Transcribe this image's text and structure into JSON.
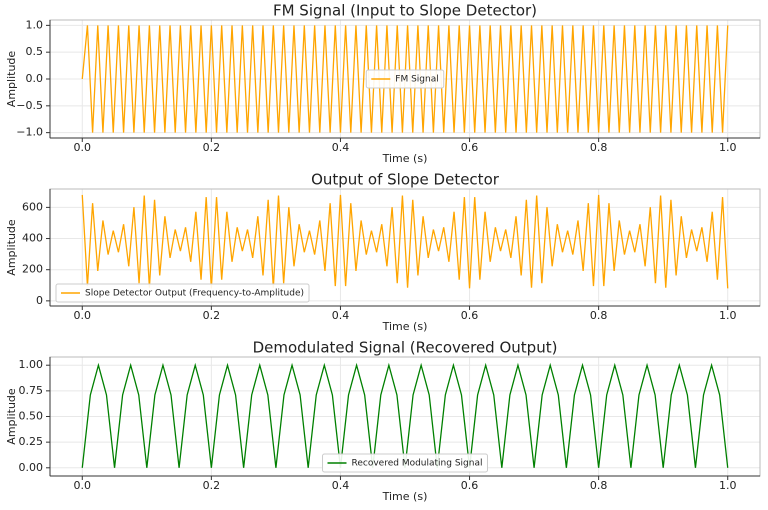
{
  "chart_data": [
    {
      "type": "line",
      "title": "FM Signal (Input to Slope Detector)",
      "x_label": "Time (s)",
      "y_label": "Amplitude",
      "x": [
        0,
        0.008,
        0.016,
        0.024,
        0.032,
        0.04,
        0.048,
        0.056,
        0.064,
        0.072,
        0.08,
        0.088,
        0.096,
        0.104,
        0.112,
        0.12,
        0.128,
        0.136,
        0.144,
        0.152,
        0.16,
        0.168,
        0.176,
        0.184,
        0.192,
        0.2,
        0.208,
        0.216,
        0.224,
        0.232,
        0.24,
        0.248,
        0.256,
        0.264,
        0.272,
        0.28,
        0.288,
        0.296,
        0.304,
        0.312,
        0.32,
        0.328,
        0.336,
        0.344,
        0.352,
        0.36,
        0.368,
        0.376,
        0.384,
        0.392,
        0.4,
        0.408,
        0.416,
        0.424,
        0.432,
        0.44,
        0.448,
        0.456,
        0.464,
        0.472,
        0.48,
        0.488,
        0.496,
        0.504,
        0.512,
        0.52,
        0.528,
        0.536,
        0.544,
        0.552,
        0.56,
        0.568,
        0.576,
        0.584,
        0.592,
        0.6,
        0.608,
        0.616,
        0.624,
        0.632,
        0.64,
        0.648,
        0.656,
        0.664,
        0.672,
        0.68,
        0.688,
        0.696,
        0.704,
        0.712,
        0.72,
        0.728,
        0.736,
        0.744,
        0.752,
        0.76,
        0.768,
        0.776,
        0.784,
        0.792,
        0.8,
        0.808,
        0.816,
        0.824,
        0.832,
        0.84,
        0.848,
        0.856,
        0.864,
        0.872,
        0.88,
        0.888,
        0.896,
        0.904,
        0.912,
        0.92,
        0.928,
        0.936,
        0.944,
        0.952,
        0.96,
        0.968,
        0.976,
        0.984,
        0.992,
        1
      ],
      "series": [
        {
          "name": "FM Signal",
          "color": "#ffa500",
          "values": [
            0,
            1,
            -1,
            1,
            -1,
            1,
            -1,
            1,
            -1,
            1,
            -1,
            1,
            -1,
            1,
            -1,
            1,
            -1,
            1,
            -1,
            1,
            -1,
            1,
            -1,
            1,
            -1,
            1,
            -1,
            1,
            -1,
            1,
            -1,
            1,
            -1,
            1,
            -1,
            1,
            -1,
            1,
            -1,
            1,
            -1,
            1,
            -1,
            1,
            -1,
            1,
            -1,
            1,
            -1,
            1,
            -1,
            1,
            -1,
            1,
            -1,
            1,
            -1,
            1,
            -1,
            1,
            -1,
            1,
            -1,
            1,
            -1,
            1,
            -1,
            1,
            -1,
            1,
            -1,
            1,
            -1,
            1,
            -1,
            1,
            -1,
            1,
            -1,
            1,
            -1,
            1,
            -1,
            1,
            -1,
            1,
            -1,
            1,
            -1,
            1,
            -1,
            1,
            -1,
            1,
            -1,
            1,
            -1,
            1,
            -1,
            1,
            -1,
            1,
            -1,
            1,
            -1,
            1,
            -1,
            1,
            -1,
            1,
            -1,
            1,
            -1,
            1,
            -1,
            1,
            -1,
            1,
            -1,
            1,
            -1,
            1,
            -1,
            1,
            -1,
            1
          ]
        }
      ],
      "xlim": [
        -0.05,
        1.05
      ],
      "ylim": [
        -1.1,
        1.1
      ],
      "xticks": [
        {
          "value": 0,
          "label": "0.0"
        },
        0.2,
        0.4,
        0.6,
        0.8,
        {
          "value": 1,
          "label": "1.0"
        }
      ],
      "yticks": [
        {
          "value": -1,
          "label": "−1.0"
        },
        {
          "value": -0.5,
          "label": "−0.5"
        },
        {
          "value": 0,
          "label": "0.0"
        },
        0.5,
        {
          "value": 1,
          "label": "1.0"
        }
      ],
      "grid": true,
      "legend": "center"
    },
    {
      "type": "line",
      "title": "Output of Slope Detector",
      "x_label": "Time (s)",
      "y_label": "Amplitude",
      "x": [
        0,
        0.008,
        0.016,
        0.024,
        0.032,
        0.04,
        0.048,
        0.056,
        0.064,
        0.072,
        0.08,
        0.088,
        0.096,
        0.104,
        0.112,
        0.12,
        0.128,
        0.136,
        0.144,
        0.152,
        0.16,
        0.168,
        0.176,
        0.184,
        0.192,
        0.2,
        0.208,
        0.216,
        0.224,
        0.232,
        0.24,
        0.248,
        0.256,
        0.264,
        0.272,
        0.28,
        0.288,
        0.296,
        0.304,
        0.312,
        0.32,
        0.328,
        0.336,
        0.344,
        0.352,
        0.36,
        0.368,
        0.376,
        0.384,
        0.392,
        0.4,
        0.408,
        0.416,
        0.424,
        0.432,
        0.44,
        0.448,
        0.456,
        0.464,
        0.472,
        0.48,
        0.488,
        0.496,
        0.504,
        0.512,
        0.52,
        0.528,
        0.536,
        0.544,
        0.552,
        0.56,
        0.568,
        0.576,
        0.584,
        0.592,
        0.6,
        0.608,
        0.616,
        0.624,
        0.632,
        0.64,
        0.648,
        0.656,
        0.664,
        0.672,
        0.68,
        0.688,
        0.696,
        0.704,
        0.712,
        0.72,
        0.728,
        0.736,
        0.744,
        0.752,
        0.76,
        0.768,
        0.776,
        0.784,
        0.792,
        0.8,
        0.808,
        0.816,
        0.824,
        0.832,
        0.84,
        0.848,
        0.856,
        0.864,
        0.872,
        0.88,
        0.888,
        0.896,
        0.904,
        0.912,
        0.92,
        0.928,
        0.936,
        0.944,
        0.952,
        0.96,
        0.968,
        0.976,
        0.984,
        0.992,
        1
      ],
      "series": [
        {
          "name": "Slope Detector Output (Frequency-to-Amplitude)",
          "color": "#ffa500",
          "values": [
            680,
            95,
            627,
            192,
            516,
            297,
            451,
            312,
            492,
            222,
            601,
            113,
            676,
            84,
            649,
            163,
            543,
            276,
            458,
            319,
            472,
            251,
            572,
            136,
            666,
            80,
            666,
            136,
            572,
            251,
            472,
            319,
            458,
            276,
            543,
            163,
            649,
            84,
            676,
            113,
            601,
            222,
            492,
            312,
            451,
            297,
            516,
            192,
            627,
            95,
            680,
            95,
            627,
            192,
            516,
            297,
            451,
            312,
            492,
            222,
            601,
            113,
            676,
            84,
            649,
            163,
            543,
            276,
            458,
            319,
            472,
            251,
            572,
            136,
            666,
            80,
            666,
            136,
            572,
            251,
            472,
            319,
            458,
            276,
            543,
            163,
            649,
            84,
            676,
            113,
            601,
            222,
            492,
            312,
            451,
            297,
            516,
            192,
            627,
            95,
            680,
            95,
            627,
            192,
            516,
            297,
            451,
            312,
            492,
            222,
            601,
            113,
            676,
            84,
            649,
            163,
            543,
            276,
            458,
            319,
            472,
            251,
            572,
            136,
            666,
            80
          ]
        }
      ],
      "xlim": [
        -0.05,
        1.05
      ],
      "ylim": [
        -33,
        718
      ],
      "xticks": [
        {
          "value": 0,
          "label": "0.0"
        },
        0.2,
        0.4,
        0.6,
        0.8,
        {
          "value": 1,
          "label": "1.0"
        }
      ],
      "yticks": [
        0,
        200,
        400,
        600
      ],
      "grid": true,
      "legend": "lower left"
    },
    {
      "type": "line",
      "title": "Demodulated Signal (Recovered Output)",
      "x_label": "Time (s)",
      "y_label": "Amplitude",
      "x": [
        0,
        0.0125,
        0.025,
        0.0375,
        0.05,
        0.0625,
        0.075,
        0.0875,
        0.1,
        0.1125,
        0.125,
        0.1375,
        0.15,
        0.1625,
        0.175,
        0.1875,
        0.2,
        0.2125,
        0.225,
        0.2375,
        0.25,
        0.2625,
        0.275,
        0.2875,
        0.3,
        0.3125,
        0.325,
        0.3375,
        0.35,
        0.3625,
        0.375,
        0.3875,
        0.4,
        0.4125,
        0.425,
        0.4375,
        0.45,
        0.4625,
        0.475,
        0.4875,
        0.5,
        0.5125,
        0.525,
        0.5375,
        0.55,
        0.5625,
        0.575,
        0.5875,
        0.6,
        0.6125,
        0.625,
        0.6375,
        0.65,
        0.6625,
        0.675,
        0.6875,
        0.7,
        0.7125,
        0.725,
        0.7375,
        0.75,
        0.7625,
        0.775,
        0.7875,
        0.8,
        0.8125,
        0.825,
        0.8375,
        0.85,
        0.8625,
        0.875,
        0.8875,
        0.9,
        0.9125,
        0.925,
        0.9375,
        0.95,
        0.9625,
        0.975,
        0.9875,
        1
      ],
      "series": [
        {
          "name": "Recovered Modulating Signal",
          "color": "#008000",
          "values": [
            0,
            0.71,
            1,
            0.71,
            0,
            0.71,
            1,
            0.71,
            0,
            0.71,
            1,
            0.71,
            0,
            0.71,
            1,
            0.71,
            0,
            0.71,
            1,
            0.71,
            0,
            0.71,
            1,
            0.71,
            0,
            0.71,
            1,
            0.71,
            0,
            0.71,
            1,
            0.71,
            0,
            0.71,
            1,
            0.71,
            0,
            0.71,
            1,
            0.71,
            0,
            0.71,
            1,
            0.71,
            0,
            0.71,
            1,
            0.71,
            0,
            0.71,
            1,
            0.71,
            0,
            0.71,
            1,
            0.71,
            0,
            0.71,
            1,
            0.71,
            0,
            0.71,
            1,
            0.71,
            0,
            0.71,
            1,
            0.71,
            0,
            0.71,
            1,
            0.71,
            0,
            0.71,
            1,
            0.71,
            0,
            0.71,
            1,
            0.71,
            0
          ]
        }
      ],
      "xlim": [
        -0.05,
        1.05
      ],
      "ylim": [
        -0.08,
        1.08
      ],
      "xticks": [
        {
          "value": 0,
          "label": "0.0"
        },
        0.2,
        0.4,
        0.6,
        0.8,
        {
          "value": 1,
          "label": "1.0"
        }
      ],
      "yticks": [
        {
          "value": 0,
          "label": "0.00"
        },
        {
          "value": 0.25,
          "label": "0.25"
        },
        {
          "value": 0.5,
          "label": "0.50"
        },
        {
          "value": 0.75,
          "label": "0.75"
        },
        {
          "value": 1,
          "label": "1.00"
        }
      ],
      "grid": true,
      "legend": "lower center"
    }
  ]
}
